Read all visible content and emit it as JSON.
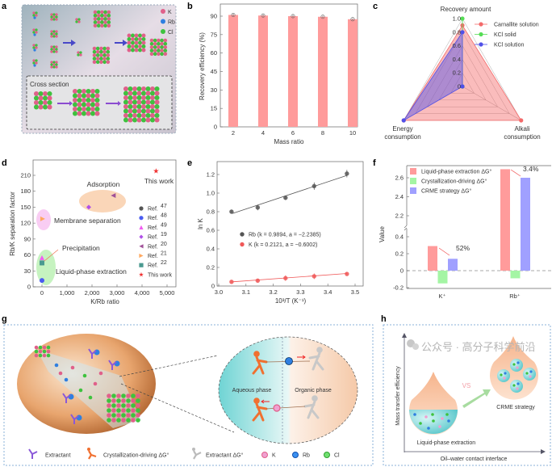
{
  "panel_labels": {
    "a": "a",
    "b": "b",
    "c": "c",
    "d": "d",
    "e": "e",
    "f": "f",
    "g": "g",
    "h": "h"
  },
  "panel_a": {
    "legend": [
      {
        "label": "K",
        "color": "#e0608a"
      },
      {
        "label": "Rb",
        "color": "#2f7fe0"
      },
      {
        "label": "Cl",
        "color": "#3ec23e"
      }
    ],
    "cross_section_title": "Cross section"
  },
  "chart_data": [
    {
      "panel": "b",
      "type": "bar",
      "categories": [
        "2",
        "4",
        "6",
        "8",
        "10"
      ],
      "values": [
        91,
        90.5,
        90,
        89.5,
        87.5
      ],
      "errors": [
        1,
        1,
        1,
        0.8,
        0.8
      ],
      "xlabel": "Mass ratio",
      "ylabel": "Recovery efficiency (%)",
      "ylim": [
        0,
        95
      ],
      "yticks": [
        "0",
        "15",
        "30",
        "45",
        "60",
        "75",
        "90"
      ],
      "color": "#ff9b9b"
    },
    {
      "panel": "c",
      "type": "radar",
      "axes": [
        "Recovery amount",
        "Energy consumption",
        "Alkali consumption"
      ],
      "axis_label_lines": [
        [
          "Recovery amount"
        ],
        [
          "Energy",
          "consumption"
        ],
        [
          "Alkali",
          "consumption"
        ]
      ],
      "rticks": [
        "0",
        "0.2",
        "0.4",
        "0.6",
        "0.8",
        "1.0"
      ],
      "series": [
        {
          "name": "Carnallite solution",
          "values": [
            0.9,
            1.0,
            1.0
          ],
          "color": "#f36a6a"
        },
        {
          "name": "KCl solid",
          "values": [
            1.0,
            0,
            0
          ],
          "color": "#55dd55"
        },
        {
          "name": "KCl solution",
          "values": [
            0.8,
            1.0,
            0
          ],
          "color": "#5050e8"
        }
      ],
      "legend": "top-right"
    },
    {
      "panel": "d",
      "type": "scatter",
      "xlabel": "K/Rb ratio",
      "ylabel": "Rb/K separation factor",
      "xlim": [
        -300,
        5300
      ],
      "ylim": [
        0,
        225
      ],
      "xticks": [
        {
          "v": 0,
          "label": "0"
        },
        {
          "v": 1000,
          "label": "1,000"
        },
        {
          "v": 2000,
          "label": "2,000"
        },
        {
          "v": 3000,
          "label": "3,000"
        },
        {
          "v": 4000,
          "label": "4,000"
        },
        {
          "v": 5000,
          "label": "5,000"
        }
      ],
      "yticks": [
        {
          "v": 0,
          "label": "0"
        },
        {
          "v": 30,
          "label": "30"
        },
        {
          "v": 60,
          "label": "60"
        },
        {
          "v": 90,
          "label": "90"
        },
        {
          "v": 120,
          "label": "120"
        },
        {
          "v": 150,
          "label": "150"
        },
        {
          "v": 180,
          "label": "180"
        },
        {
          "v": 210,
          "label": "210"
        }
      ],
      "series": [
        {
          "name": "Ref.",
          "ref": "47",
          "marker": "circle",
          "color": "#555555",
          "x": 0,
          "y": 45
        },
        {
          "name": "Ref.",
          "ref": "48",
          "marker": "circle",
          "color": "#4a5cf0",
          "x": 0,
          "y": 12
        },
        {
          "name": "Ref.",
          "ref": "49",
          "marker": "triangle-up",
          "color": "#f05cf0",
          "x": 0,
          "y": 55
        },
        {
          "name": "Ref.",
          "ref": "19",
          "marker": "diamond",
          "color": "#b050e8",
          "x": 1870,
          "y": 150
        },
        {
          "name": "Ref.",
          "ref": "20",
          "marker": "triangle-left",
          "color": "#a05098",
          "x": 2850,
          "y": 172
        },
        {
          "name": "Ref.",
          "ref": "21",
          "marker": "triangle-right",
          "color": "#ffa860",
          "x": 30,
          "y": 128
        },
        {
          "name": "Ref.",
          "ref": "22",
          "marker": "square",
          "color": "#4a9a90",
          "x": 0,
          "y": 45
        },
        {
          "name": "This work",
          "ref": "",
          "marker": "star",
          "color": "#f03030",
          "x": 4560,
          "y": 218
        }
      ],
      "annotations": {
        "adsorption": "Adsorption",
        "membrane": "Membrane separation",
        "precipitation": "Precipitation",
        "lpe": "Liquid-phase extraction",
        "this_work": "This work"
      },
      "legend": "right"
    },
    {
      "panel": "e",
      "type": "scatter",
      "xlabel": "10³/T (K⁻¹)",
      "ylabel": "ln K",
      "xlim": [
        3.0,
        3.52
      ],
      "ylim": [
        0,
        1.28
      ],
      "xticks": [
        "3.0",
        "3.1",
        "3.2",
        "3.3",
        "3.4",
        "3.5"
      ],
      "yticks": [
        "0",
        "0.2",
        "0.4",
        "0.6",
        "0.8",
        "1.0",
        "1.2"
      ],
      "series": [
        {
          "name": "Rb (k = 0.9894, a = −2.2385)",
          "color": "#555555",
          "x": [
            3.047,
            3.143,
            3.245,
            3.35,
            3.47
          ],
          "y": [
            0.8,
            0.845,
            0.95,
            1.075,
            1.21
          ],
          "err": [
            0.02,
            0.03,
            0.025,
            0.04,
            0.04
          ],
          "fit": {
            "x": [
              3.05,
              3.47
            ],
            "y": [
              0.78,
              1.19
            ]
          }
        },
        {
          "name": "K (k = 0.2121, a = −0.6002)",
          "color": "#f05858",
          "x": [
            3.047,
            3.143,
            3.245,
            3.35,
            3.47
          ],
          "y": [
            0.045,
            0.058,
            0.085,
            0.105,
            0.13
          ],
          "err": [
            0.02,
            0.02,
            0.03,
            0.03,
            0.02
          ],
          "fit": {
            "x": [
              3.05,
              3.47
            ],
            "y": [
              0.045,
              0.135
            ]
          }
        }
      ],
      "legend": "center-left"
    },
    {
      "panel": "f",
      "type": "bar",
      "categories": [
        "K⁺",
        "Rb⁺"
      ],
      "ylabel": "Value",
      "yaxis_break": [
        0.45,
        2.1
      ],
      "yticks_lower": [
        "-0.2",
        "0",
        "0.2",
        "0.4"
      ],
      "yticks_upper": [
        "2.2",
        "2.4",
        "2.6"
      ],
      "series": [
        {
          "name": "Liquid-phase extraction ΔG°",
          "values": [
            0.29,
            2.69
          ],
          "color": "#ff9b9b"
        },
        {
          "name": "Crystallization-driving ΔG°",
          "values": [
            -0.15,
            -0.09
          ],
          "color": "#a4f5a4"
        },
        {
          "name": "CRME strategy ΔG°",
          "values": [
            0.14,
            2.6
          ],
          "color": "#a0a0ff"
        }
      ],
      "annotations": [
        "52%",
        "3.4%"
      ],
      "legend": "top-left"
    }
  ],
  "panel_g": {
    "aqueous_phase": "Aqueous phase",
    "organic_phase": "Organic phase",
    "legend": [
      "Extractant",
      "Crystallization-driving ΔG°",
      "Extractant ΔG°",
      "K",
      "Rb",
      "Cl"
    ]
  },
  "panel_h": {
    "yaxis": "Mass transfer efficiency",
    "xaxis": "Oil–water contact interface",
    "left_label": "Liquid-phase extraction",
    "right_label": "CRME strategy",
    "vs": "VS"
  },
  "watermark": "公众号 · 高分子科学前沿"
}
